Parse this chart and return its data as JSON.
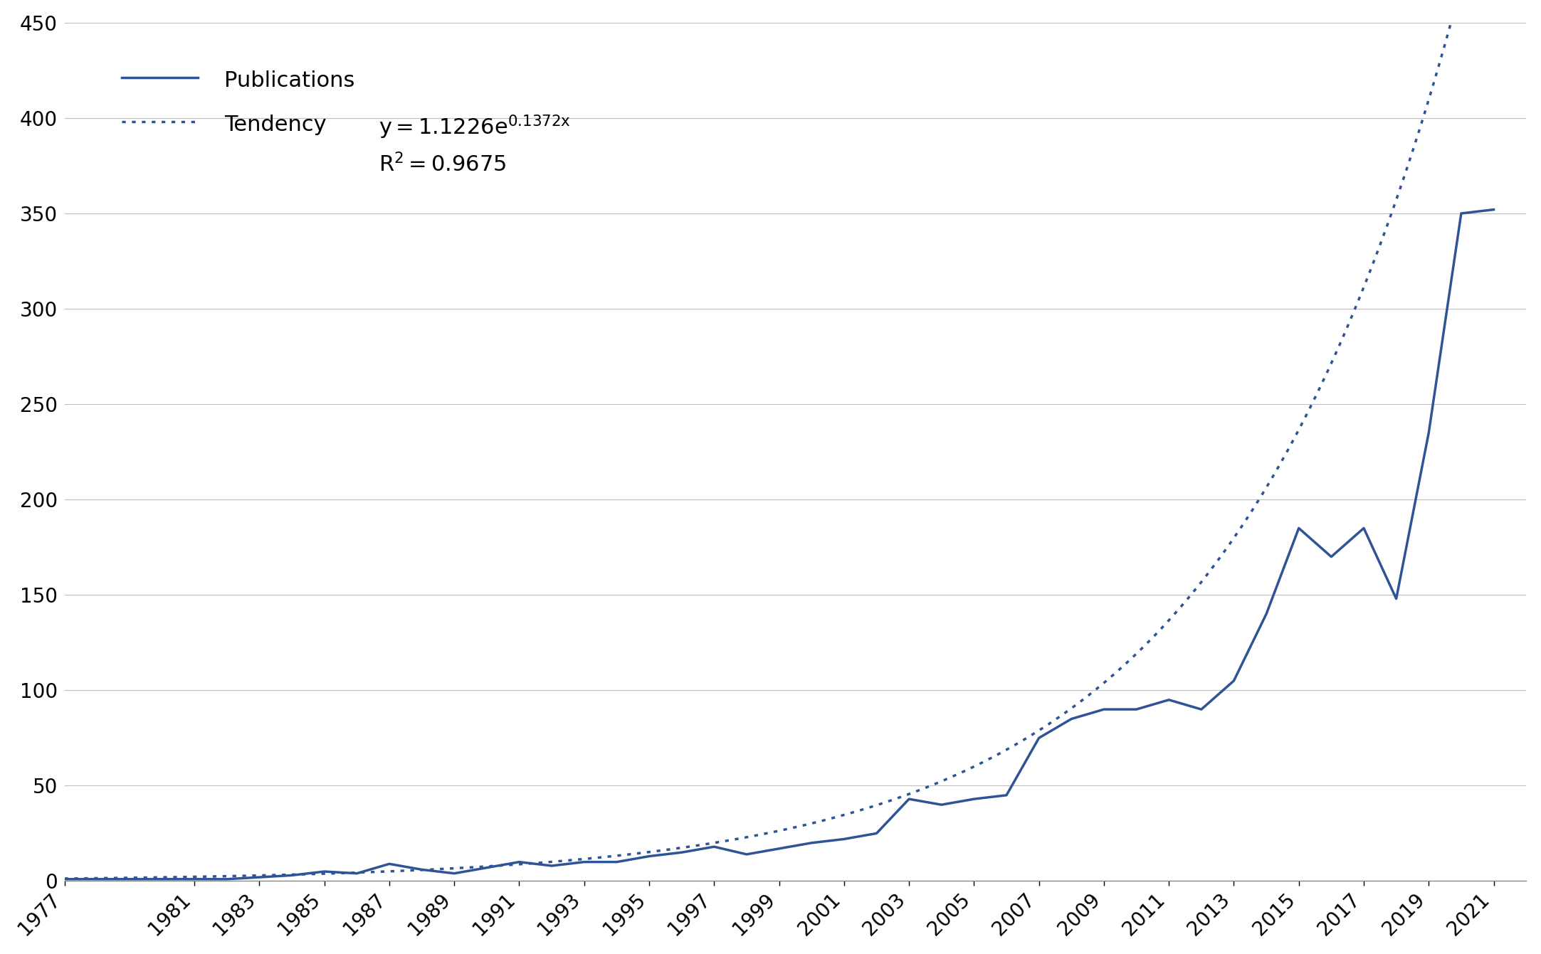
{
  "years": [
    1977,
    1978,
    1979,
    1980,
    1981,
    1982,
    1983,
    1984,
    1985,
    1986,
    1987,
    1988,
    1989,
    1990,
    1991,
    1992,
    1993,
    1994,
    1995,
    1996,
    1997,
    1998,
    1999,
    2000,
    2001,
    2002,
    2003,
    2004,
    2005,
    2006,
    2007,
    2008,
    2009,
    2010,
    2011,
    2012,
    2013,
    2014,
    2015,
    2016,
    2017,
    2018,
    2019,
    2020,
    2021
  ],
  "publications": [
    1,
    1,
    1,
    1,
    1,
    1,
    2,
    3,
    5,
    4,
    9,
    6,
    4,
    7,
    10,
    8,
    10,
    10,
    13,
    15,
    18,
    14,
    17,
    20,
    22,
    25,
    43,
    40,
    43,
    45,
    75,
    85,
    90,
    90,
    95,
    90,
    105,
    140,
    185,
    170,
    185,
    148,
    235,
    350,
    352
  ],
  "tendency_a": 1.1226,
  "tendency_b": 0.1372,
  "r_squared": 0.9675,
  "line_color": "#2F5496",
  "dotted_color": "#2F5496",
  "background_color": "#ffffff",
  "grid_color": "#bebebe",
  "ylim": [
    0,
    450
  ],
  "yticks": [
    0,
    50,
    100,
    150,
    200,
    250,
    300,
    350,
    400,
    450
  ],
  "xlim_start": 1977,
  "xlim_end": 2022,
  "x_tick_positions": [
    1977,
    1981,
    1983,
    1985,
    1987,
    1989,
    1991,
    1993,
    1995,
    1997,
    1999,
    2001,
    2003,
    2005,
    2007,
    2009,
    2011,
    2013,
    2015,
    2017,
    2019,
    2021
  ],
  "legend_publications": "Publications",
  "legend_tendency": "Tendency",
  "font_size": 22,
  "tick_fontsize": 20,
  "equation_superscript": "0.1372x",
  "equation_base": "y = 1.1226e",
  "r2_label": "R² = 0.9675"
}
